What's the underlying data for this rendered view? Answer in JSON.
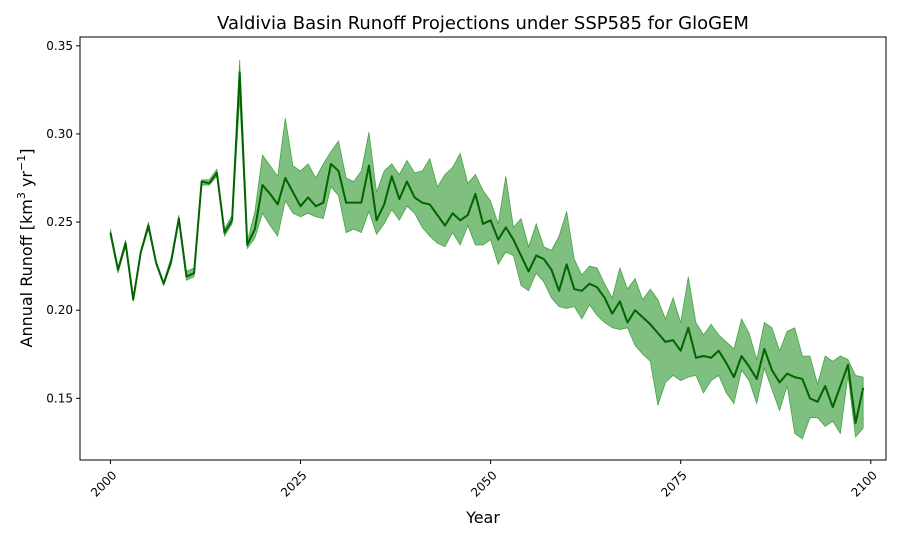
{
  "chart_data": {
    "type": "line",
    "title": "Valdivia Basin Runoff Projections under SSP585 for GloGEM",
    "xlabel": "Year",
    "ylabel_main": "Annual Runoff [km",
    "ylabel_sup1": "3",
    "ylabel_mid": " yr",
    "ylabel_sup2": "−1",
    "ylabel_end": "]",
    "xlim": [
      1996,
      2102
    ],
    "ylim": [
      0.115,
      0.355
    ],
    "xticks": [
      2000,
      2025,
      2050,
      2075,
      2100
    ],
    "yticks": [
      0.15,
      0.2,
      0.25,
      0.3,
      0.35
    ],
    "ytick_labels": [
      "0.15",
      "0.20",
      "0.25",
      "0.30",
      "0.35"
    ],
    "grid": false,
    "colors": {
      "line": "#006400",
      "band": "#008000",
      "band_opacity": 0.5
    },
    "series": [
      {
        "x": [
          2000,
          2001,
          2002,
          2003,
          2004,
          2005,
          2006,
          2007,
          2008,
          2009,
          2010,
          2011,
          2012,
          2013,
          2014,
          2015,
          2016,
          2017,
          2018,
          2019,
          2020,
          2021,
          2022,
          2023,
          2024,
          2025,
          2026,
          2027,
          2028,
          2029,
          2030,
          2031,
          2032,
          2033,
          2034,
          2035,
          2036,
          2037,
          2038,
          2039,
          2040,
          2041,
          2042,
          2043,
          2044,
          2045,
          2046,
          2047,
          2048,
          2049,
          2050,
          2051,
          2052,
          2053,
          2054,
          2055,
          2056,
          2057,
          2058,
          2059,
          2060,
          2061,
          2062,
          2063,
          2064,
          2065,
          2066,
          2067,
          2068,
          2069,
          2070,
          2071,
          2072,
          2073,
          2074,
          2075,
          2076,
          2077,
          2078,
          2079,
          2080,
          2081,
          2082,
          2083,
          2084,
          2085,
          2086,
          2087,
          2088,
          2089,
          2090,
          2091,
          2092,
          2093,
          2094,
          2095,
          2096,
          2097,
          2098,
          2099
        ],
        "mean": [
          0.244,
          0.223,
          0.238,
          0.206,
          0.233,
          0.248,
          0.227,
          0.215,
          0.228,
          0.252,
          0.219,
          0.221,
          0.273,
          0.272,
          0.278,
          0.244,
          0.251,
          0.335,
          0.237,
          0.246,
          0.271,
          0.266,
          0.26,
          0.275,
          0.267,
          0.259,
          0.264,
          0.259,
          0.261,
          0.283,
          0.279,
          0.261,
          0.261,
          0.261,
          0.282,
          0.251,
          0.26,
          0.276,
          0.263,
          0.273,
          0.264,
          0.261,
          0.26,
          0.254,
          0.248,
          0.255,
          0.251,
          0.254,
          0.266,
          0.249,
          0.251,
          0.24,
          0.247,
          0.24,
          0.231,
          0.222,
          0.231,
          0.229,
          0.223,
          0.211,
          0.226,
          0.212,
          0.211,
          0.215,
          0.213,
          0.207,
          0.198,
          0.205,
          0.193,
          0.2,
          0.196,
          0.192,
          0.187,
          0.182,
          0.183,
          0.177,
          0.19,
          0.173,
          0.174,
          0.173,
          0.177,
          0.17,
          0.162,
          0.174,
          0.168,
          0.161,
          0.178,
          0.166,
          0.159,
          0.164,
          0.162,
          0.161,
          0.15,
          0.148,
          0.157,
          0.145,
          0.157,
          0.169,
          0.136,
          0.156
        ],
        "upper": [
          0.246,
          0.224,
          0.24,
          0.207,
          0.234,
          0.25,
          0.228,
          0.216,
          0.23,
          0.254,
          0.222,
          0.224,
          0.274,
          0.274,
          0.28,
          0.246,
          0.254,
          0.342,
          0.239,
          0.256,
          0.288,
          0.282,
          0.276,
          0.309,
          0.282,
          0.279,
          0.283,
          0.275,
          0.283,
          0.29,
          0.296,
          0.275,
          0.273,
          0.279,
          0.301,
          0.267,
          0.279,
          0.283,
          0.277,
          0.285,
          0.278,
          0.279,
          0.286,
          0.27,
          0.277,
          0.281,
          0.289,
          0.272,
          0.277,
          0.268,
          0.262,
          0.249,
          0.276,
          0.247,
          0.252,
          0.236,
          0.249,
          0.236,
          0.234,
          0.242,
          0.256,
          0.229,
          0.22,
          0.225,
          0.224,
          0.215,
          0.207,
          0.224,
          0.212,
          0.218,
          0.206,
          0.212,
          0.206,
          0.195,
          0.207,
          0.193,
          0.219,
          0.193,
          0.186,
          0.192,
          0.186,
          0.182,
          0.178,
          0.195,
          0.187,
          0.172,
          0.193,
          0.19,
          0.177,
          0.188,
          0.19,
          0.174,
          0.174,
          0.158,
          0.174,
          0.171,
          0.174,
          0.172,
          0.163,
          0.162
        ],
        "lower": [
          0.242,
          0.221,
          0.236,
          0.205,
          0.232,
          0.246,
          0.226,
          0.214,
          0.226,
          0.25,
          0.217,
          0.219,
          0.271,
          0.271,
          0.276,
          0.242,
          0.249,
          0.32,
          0.235,
          0.241,
          0.255,
          0.248,
          0.242,
          0.262,
          0.255,
          0.253,
          0.255,
          0.253,
          0.252,
          0.27,
          0.265,
          0.244,
          0.246,
          0.244,
          0.256,
          0.243,
          0.249,
          0.257,
          0.251,
          0.259,
          0.255,
          0.247,
          0.242,
          0.238,
          0.236,
          0.244,
          0.237,
          0.248,
          0.237,
          0.237,
          0.24,
          0.226,
          0.233,
          0.231,
          0.214,
          0.211,
          0.221,
          0.216,
          0.207,
          0.202,
          0.201,
          0.202,
          0.195,
          0.203,
          0.197,
          0.193,
          0.19,
          0.189,
          0.19,
          0.18,
          0.175,
          0.171,
          0.146,
          0.159,
          0.163,
          0.16,
          0.162,
          0.163,
          0.153,
          0.16,
          0.163,
          0.153,
          0.147,
          0.166,
          0.16,
          0.147,
          0.167,
          0.155,
          0.143,
          0.157,
          0.13,
          0.127,
          0.139,
          0.139,
          0.134,
          0.137,
          0.13,
          0.163,
          0.128,
          0.133
        ]
      }
    ]
  }
}
